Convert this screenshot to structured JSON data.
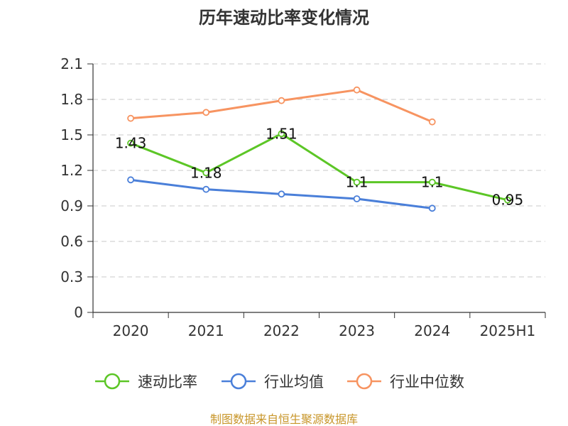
{
  "chart_data": {
    "type": "line",
    "title": "历年速动比率变化情况",
    "categories": [
      "2020",
      "2021",
      "2022",
      "2023",
      "2024",
      "2025H1"
    ],
    "y_ticks": [
      "0",
      "0.3",
      "0.6",
      "0.9",
      "1.2",
      "1.5",
      "1.8",
      "2.1"
    ],
    "ylim": [
      0,
      2.1
    ],
    "grid": "horizontal dashed",
    "legend_position": "bottom",
    "series": [
      {
        "name": "速动比率",
        "color": "#5cc626",
        "values": [
          1.43,
          1.18,
          1.51,
          1.1,
          1.1,
          0.95
        ],
        "labels": [
          "1.43",
          "1.18",
          "1.51",
          "1.1",
          "1.1",
          "0.95"
        ]
      },
      {
        "name": "行业均值",
        "color": "#4a7fd9",
        "values": [
          1.12,
          1.04,
          1.0,
          0.96,
          0.88,
          null
        ]
      },
      {
        "name": "行业中位数",
        "color": "#f79461",
        "values": [
          1.64,
          1.69,
          1.79,
          1.88,
          1.61,
          null
        ]
      }
    ]
  },
  "source_text": "制图数据来自恒生聚源数据库"
}
